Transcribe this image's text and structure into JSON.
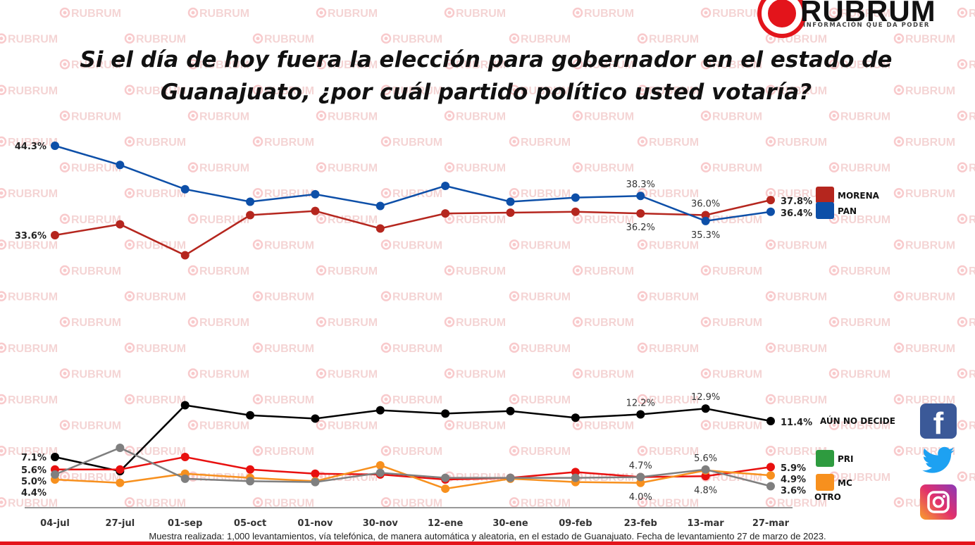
{
  "watermark_text": "RUBRUM",
  "logo": {
    "name": "RUBRUM",
    "tagline": "INFORMACIÓN QUE DA PODER"
  },
  "title_line1": "Si el día de hoy fuera la elección para gobernador en el estado de",
  "title_line2": "Guanajuato, ¿por cuál  partido político usted votaría?",
  "footer": "Muestra realizada: 1,000 levantamientos, vía telefónica, de manera automática y aleatoria, en el estado de Guanajuato. Fecha de levantamiento 27 de marzo de 2023.",
  "social_icons": [
    "facebook-icon",
    "twitter-icon",
    "instagram-icon"
  ],
  "chart_data": {
    "type": "line",
    "title": "Si el día de hoy fuera la elección para gobernador en el estado de Guanajuato, ¿por cuál  partido político usted votaría?",
    "categories": [
      "04-jul",
      "27-jul",
      "01-sep",
      "05-oct",
      "01-nov",
      "30-nov",
      "12-ene",
      "30-ene",
      "09-feb",
      "23-feb",
      "13-mar",
      "27-mar"
    ],
    "unit": "%",
    "axis_break": "upper panel 31-45, lower panel 3-14",
    "grid": false,
    "legend": "right, at line ends",
    "series": [
      {
        "name": "MORENA",
        "color": "#b5261e",
        "panel": "upper",
        "values": [
          33.6,
          34.9,
          31.2,
          36.0,
          36.5,
          34.4,
          36.2,
          36.3,
          36.4,
          36.2,
          36.0,
          37.8
        ],
        "labeled": [
          0,
          9,
          10,
          11
        ],
        "label_pos": [
          "left",
          "below",
          "above",
          "right"
        ]
      },
      {
        "name": "PAN",
        "color": "#0d4fa8",
        "panel": "upper",
        "values": [
          44.3,
          42.0,
          39.1,
          37.6,
          38.5,
          37.1,
          39.5,
          37.6,
          38.1,
          38.3,
          35.3,
          36.4
        ],
        "labeled": [
          0,
          9,
          10,
          11
        ],
        "label_pos": [
          "left",
          "above",
          "below",
          "right"
        ]
      },
      {
        "name": "AÚN NO DECIDE",
        "color": "#000000",
        "panel": "lower",
        "values": [
          7.1,
          5.4,
          13.3,
          12.1,
          11.7,
          12.7,
          12.3,
          12.6,
          11.8,
          12.2,
          12.9,
          11.4
        ],
        "labeled": [
          0,
          9,
          10,
          11
        ],
        "label_pos": [
          "left",
          "above",
          "above",
          "right"
        ]
      },
      {
        "name": "PRI",
        "color": "#e8100f",
        "panel": "lower",
        "values": [
          5.6,
          5.6,
          7.1,
          5.6,
          5.1,
          5.0,
          4.4,
          4.6,
          5.3,
          4.7,
          4.8,
          5.9
        ],
        "labeled": [
          0,
          9,
          10,
          11
        ],
        "label_pos": [
          "left",
          "above",
          "below",
          "right"
        ]
      },
      {
        "name": "MC",
        "color": "#f7901e",
        "panel": "lower",
        "values": [
          4.4,
          4.0,
          5.1,
          4.6,
          4.2,
          6.1,
          3.3,
          4.5,
          4.1,
          4.0,
          5.5,
          4.9
        ],
        "labeled": [
          0,
          9,
          11
        ],
        "label_pos": [
          "left",
          "below",
          "right"
        ]
      },
      {
        "name": "OTRO",
        "color": "#7f7f7f",
        "panel": "lower",
        "values": [
          5.0,
          8.2,
          4.5,
          4.2,
          4.1,
          5.2,
          4.6,
          4.6,
          4.6,
          4.7,
          5.6,
          3.6
        ],
        "labeled": [
          0,
          10,
          11
        ],
        "label_pos": [
          "left",
          "above",
          "right"
        ]
      }
    ]
  }
}
